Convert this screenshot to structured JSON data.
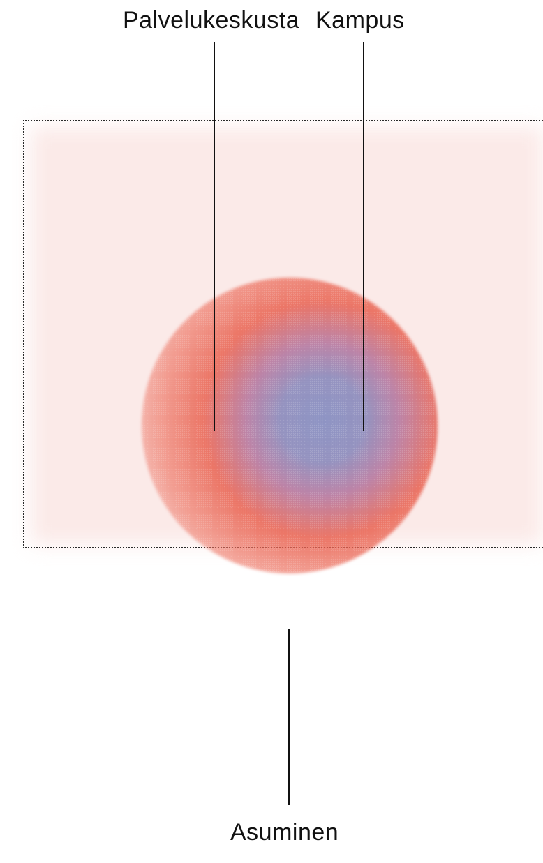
{
  "labels": {
    "top_left": "Palvelukeskusta",
    "top_right": "Kampus",
    "bottom": "Asuminen"
  },
  "colors": {
    "area_fill": "#fbe9e7",
    "blob_core": "#8e94c4",
    "blob_edge": "#e8604e",
    "line": "#111111"
  }
}
